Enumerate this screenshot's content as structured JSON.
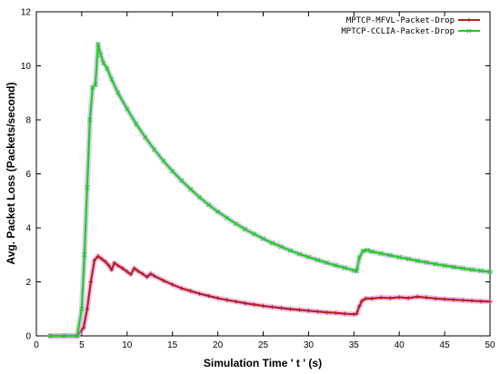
{
  "chart_data": {
    "type": "line",
    "title": "",
    "xlabel": "Simulation Time ' t ' (s)",
    "ylabel": "Avg. Packet Loss (Packets/second)",
    "xlim": [
      0,
      50
    ],
    "ylim": [
      0,
      12
    ],
    "xticks": [
      "0",
      "5",
      "10",
      "15",
      "20",
      "25",
      "30",
      "35",
      "40",
      "45",
      "50"
    ],
    "yticks": [
      "0",
      "2",
      "4",
      "6",
      "8",
      "10",
      "12"
    ],
    "grid": false,
    "legend_position": "top-right",
    "series": [
      {
        "name": "MPTCP-MFVL-Packet-Drop",
        "color": "#b22222",
        "halo_color": "#e58ee0",
        "marker": "plus",
        "points": [
          [
            1.5,
            0
          ],
          [
            3,
            0
          ],
          [
            4.5,
            0
          ],
          [
            5.2,
            0.3
          ],
          [
            5.6,
            1.0
          ],
          [
            6.0,
            2.0
          ],
          [
            6.4,
            2.8
          ],
          [
            6.8,
            2.95
          ],
          [
            7.2,
            2.85
          ],
          [
            7.6,
            2.75
          ],
          [
            8,
            2.6
          ],
          [
            8.3,
            2.45
          ],
          [
            8.6,
            2.7
          ],
          [
            9,
            2.6
          ],
          [
            9.5,
            2.5
          ],
          [
            10,
            2.38
          ],
          [
            10.4,
            2.28
          ],
          [
            10.8,
            2.5
          ],
          [
            11.2,
            2.4
          ],
          [
            11.7,
            2.3
          ],
          [
            12.2,
            2.18
          ],
          [
            12.6,
            2.3
          ],
          [
            13,
            2.22
          ],
          [
            14,
            2.05
          ],
          [
            15,
            1.9
          ],
          [
            16,
            1.76
          ],
          [
            17,
            1.66
          ],
          [
            18,
            1.56
          ],
          [
            19,
            1.48
          ],
          [
            20,
            1.4
          ],
          [
            21,
            1.33
          ],
          [
            22,
            1.27
          ],
          [
            23,
            1.21
          ],
          [
            24,
            1.16
          ],
          [
            25,
            1.11
          ],
          [
            26,
            1.07
          ],
          [
            27,
            1.03
          ],
          [
            28,
            0.99
          ],
          [
            29,
            0.96
          ],
          [
            30,
            0.93
          ],
          [
            31,
            0.9
          ],
          [
            32,
            0.87
          ],
          [
            33,
            0.85
          ],
          [
            34,
            0.82
          ],
          [
            35,
            0.8
          ],
          [
            35.3,
            0.82
          ],
          [
            35.6,
            1.1
          ],
          [
            35.9,
            1.3
          ],
          [
            36.3,
            1.38
          ],
          [
            37,
            1.38
          ],
          [
            38,
            1.42
          ],
          [
            39,
            1.4
          ],
          [
            40,
            1.43
          ],
          [
            41,
            1.4
          ],
          [
            42,
            1.45
          ],
          [
            43,
            1.42
          ],
          [
            44,
            1.38
          ],
          [
            45,
            1.36
          ],
          [
            46,
            1.34
          ],
          [
            47,
            1.32
          ],
          [
            48,
            1.3
          ],
          [
            49,
            1.28
          ],
          [
            50,
            1.27
          ]
        ]
      },
      {
        "name": "MPTCP-CCLIA-Packet-Drop",
        "color": "#22cc22",
        "halo_color": "#b8a8e8",
        "marker": "x",
        "points": [
          [
            1.5,
            0
          ],
          [
            3,
            0
          ],
          [
            4.5,
            0
          ],
          [
            5.0,
            1.0
          ],
          [
            5.3,
            3.0
          ],
          [
            5.6,
            5.5
          ],
          [
            5.9,
            8.0
          ],
          [
            6.2,
            9.2
          ],
          [
            6.5,
            9.3
          ],
          [
            6.8,
            10.8
          ],
          [
            7.1,
            10.4
          ],
          [
            7.4,
            10.1
          ],
          [
            7.8,
            9.9
          ],
          [
            8.3,
            9.5
          ],
          [
            9,
            9.0
          ],
          [
            10,
            8.4
          ],
          [
            11,
            7.85
          ],
          [
            12,
            7.35
          ],
          [
            13,
            6.9
          ],
          [
            14,
            6.48
          ],
          [
            15,
            6.1
          ],
          [
            16,
            5.75
          ],
          [
            17,
            5.43
          ],
          [
            18,
            5.13
          ],
          [
            19,
            4.85
          ],
          [
            20,
            4.6
          ],
          [
            21,
            4.37
          ],
          [
            22,
            4.15
          ],
          [
            23,
            3.95
          ],
          [
            24,
            3.77
          ],
          [
            25,
            3.6
          ],
          [
            26,
            3.44
          ],
          [
            27,
            3.3
          ],
          [
            28,
            3.16
          ],
          [
            29,
            3.03
          ],
          [
            30,
            2.92
          ],
          [
            31,
            2.81
          ],
          [
            32,
            2.71
          ],
          [
            33,
            2.61
          ],
          [
            34,
            2.52
          ],
          [
            35,
            2.42
          ],
          [
            35.3,
            2.4
          ],
          [
            35.6,
            2.9
          ],
          [
            36.0,
            3.15
          ],
          [
            36.5,
            3.17
          ],
          [
            37,
            3.12
          ],
          [
            38,
            3.05
          ],
          [
            39,
            2.98
          ],
          [
            40,
            2.91
          ],
          [
            41,
            2.85
          ],
          [
            42,
            2.78
          ],
          [
            43,
            2.72
          ],
          [
            44,
            2.66
          ],
          [
            45,
            2.6
          ],
          [
            46,
            2.55
          ],
          [
            47,
            2.5
          ],
          [
            48,
            2.45
          ],
          [
            49,
            2.41
          ],
          [
            50,
            2.37
          ]
        ]
      }
    ]
  }
}
